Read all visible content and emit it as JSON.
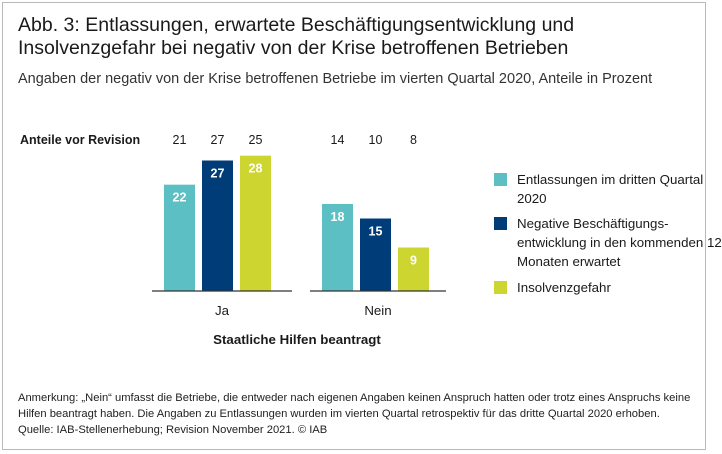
{
  "header": {
    "title": "Abb. 3: Entlassungen, erwartete Beschäftigungsentwicklung und Insolvenzgefahr bei negativ von der Krise betroffenen Betrieben",
    "subtitle": "Angaben der negativ von der Krise betroffenen Betriebe im vierten Quartal 2020, Anteile in Prozent"
  },
  "footer": {
    "note": "Anmerkung: „Nein“ umfasst die Betriebe, die entweder nach eigenen Angaben keinen Anspruch hatten oder trotz eines Anspruchs keine Hilfen beantragt haben. Die Angaben zu Entlassungen wurden im vierten Quartal retrospektiv für das dritte Quartal 2020 erhoben.",
    "source": "Quelle: IAB-Stellenerhebung; Revision November 2021. © IAB"
  },
  "chart_data": {
    "type": "bar",
    "title": "Abb. 3: Entlassungen, erwartete Beschäftigungsentwicklung und Insolvenzgefahr bei negativ von der Krise betroffenen Betrieben",
    "subtitle": "Angaben der negativ von der Krise betroffenen Betriebe im vierten Quartal 2020, Anteile in Prozent",
    "xlabel": "Staatliche Hilfen beantragt",
    "ylabel": "",
    "ylim": [
      0,
      30
    ],
    "grid": false,
    "legend_position": "right",
    "categories": [
      "Ja",
      "Nein"
    ],
    "series": [
      {
        "name": "Entlassungen im dritten Quartal 2020",
        "values": [
          22,
          18
        ],
        "pre_revision": [
          21,
          14
        ],
        "color": "#5bbfc4"
      },
      {
        "name": "Negative Beschäftigungs-entwicklung in den kommenden 12 Monaten erwartet",
        "values": [
          27,
          15
        ],
        "pre_revision": [
          27,
          10
        ],
        "color": "#003c78"
      },
      {
        "name": "Insolvenzgefahr",
        "values": [
          28,
          9
        ],
        "pre_revision": [
          25,
          8
        ],
        "color": "#cdd630"
      }
    ],
    "pre_revision_label": "Anteile vor Revision"
  }
}
